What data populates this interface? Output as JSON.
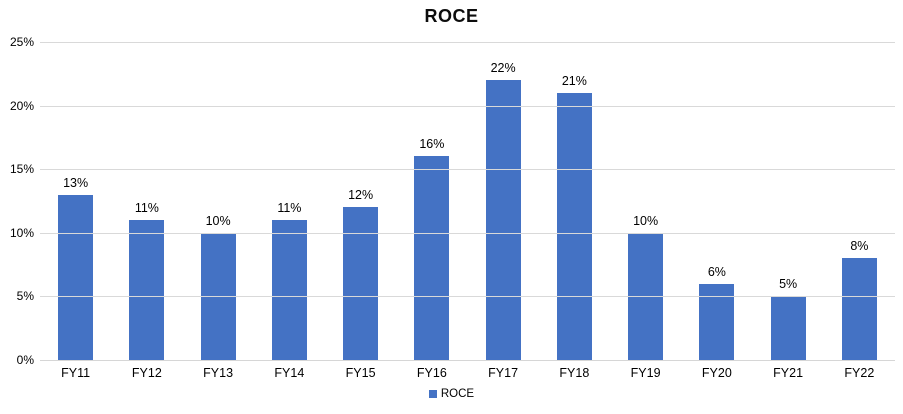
{
  "chart_data": {
    "type": "bar",
    "title": "ROCE",
    "categories": [
      "FY11",
      "FY12",
      "FY13",
      "FY14",
      "FY15",
      "FY16",
      "FY17",
      "FY18",
      "FY19",
      "FY20",
      "FY21",
      "FY22"
    ],
    "values": [
      13,
      11,
      10,
      11,
      12,
      16,
      22,
      21,
      10,
      6,
      5,
      8
    ],
    "data_labels": [
      "13%",
      "11%",
      "10%",
      "11%",
      "12%",
      "16%",
      "22%",
      "21%",
      "10%",
      "6%",
      "5%",
      "8%"
    ],
    "series_name": "ROCE",
    "xlabel": "",
    "ylabel": "",
    "ylim": [
      0,
      25
    ],
    "ytick_step": 5,
    "ytick_labels": [
      "0%",
      "5%",
      "10%",
      "15%",
      "20%",
      "25%"
    ],
    "grid": true,
    "legend_position": "bottom",
    "legend_entries": [
      "ROCE"
    ],
    "colors": {
      "bar": "#4472c4",
      "gridline": "#d9d9d9",
      "axis_line": "#d6d6d6",
      "text": "#000000",
      "background": "#ffffff"
    }
  }
}
